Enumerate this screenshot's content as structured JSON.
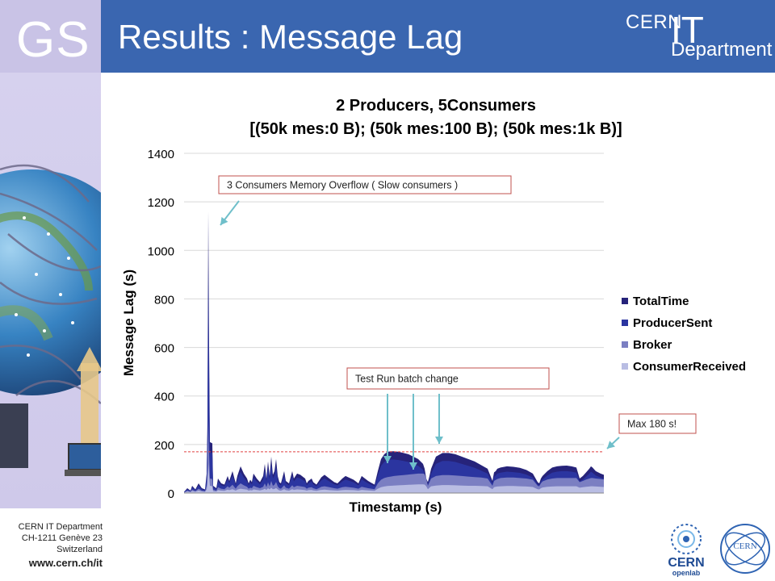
{
  "header": {
    "logo_text": "GS",
    "title": "Results : Message Lag",
    "brand_cern": "CERN",
    "brand_it": "IT",
    "brand_department": "Department"
  },
  "footer": {
    "line1": "CERN IT Department",
    "line2": "CH-1211 Genève 23",
    "line3": "Switzerland",
    "url": "www.cern.ch/it"
  },
  "logos": {
    "openlab_line1": "CERN",
    "openlab_line2": "openlab",
    "cern_seal": "CERN"
  },
  "colors": {
    "header_bg": "#3a66b0",
    "sidebar_bg": "#cfc9ea",
    "TotalTime": "#26237a",
    "ProducerSent": "#2b35a0",
    "Broker": "#7b7fc2",
    "ConsumerReceived": "#b9bde3",
    "threshold_line": "#e04040",
    "annotation_arrow": "#6fbfca"
  },
  "chart_data": {
    "type": "area",
    "title": "2 Producers, 5Consumers",
    "subtitle": "[(50k mes:0 B); (50k mes:100 B); (50k mes:1k B)]",
    "xlabel": "Timestamp (s)",
    "ylabel": "Message Lag (s)",
    "ylim": [
      0,
      1400
    ],
    "yticks": [
      0,
      200,
      400,
      600,
      800,
      1000,
      1200,
      1400
    ],
    "grid": true,
    "legend_position": "right",
    "x": [
      0,
      4,
      8,
      10,
      14,
      18,
      22,
      26,
      28,
      29,
      30,
      31,
      32,
      35,
      36,
      40,
      42,
      46,
      50,
      54,
      56,
      60,
      64,
      66,
      70,
      74,
      78,
      80,
      82,
      84,
      86,
      90,
      94,
      98,
      100,
      102,
      104,
      106,
      108,
      110,
      112,
      114,
      116,
      118,
      120,
      124,
      126,
      130,
      134,
      136,
      140,
      144,
      148,
      150,
      152,
      154,
      158,
      160,
      164,
      168,
      170,
      174,
      180,
      186,
      190,
      196,
      200,
      210,
      216,
      220,
      228,
      232,
      236,
      240,
      244,
      248,
      252,
      256,
      260,
      266,
      272,
      278,
      284,
      290,
      296,
      298,
      300,
      302,
      304,
      306,
      312,
      320,
      328,
      336,
      344,
      352,
      360,
      368,
      376,
      382,
      384,
      386,
      388,
      392,
      400,
      408,
      416,
      424,
      432,
      438,
      440,
      442,
      444,
      450,
      456,
      462,
      468,
      474,
      480,
      486,
      490,
      494,
      498,
      502,
      504,
      506,
      510,
      516,
      520
    ],
    "series": [
      {
        "name": "TotalTime",
        "values": [
          5,
          20,
          10,
          30,
          15,
          40,
          20,
          15,
          80,
          300,
          1160,
          600,
          210,
          205,
          30,
          20,
          60,
          40,
          35,
          70,
          50,
          90,
          40,
          70,
          110,
          80,
          60,
          40,
          55,
          45,
          80,
          60,
          45,
          70,
          120,
          60,
          130,
          70,
          150,
          75,
          90,
          140,
          70,
          45,
          40,
          90,
          50,
          40,
          90,
          60,
          80,
          75,
          65,
          60,
          40,
          50,
          60,
          45,
          35,
          55,
          65,
          75,
          60,
          45,
          40,
          60,
          70,
          55,
          40,
          70,
          50,
          42,
          35,
          90,
          140,
          160,
          170,
          172,
          172,
          170,
          165,
          160,
          150,
          140,
          120,
          100,
          60,
          45,
          70,
          100,
          150,
          165,
          165,
          160,
          150,
          140,
          130,
          115,
          100,
          50,
          85,
          90,
          100,
          105,
          110,
          108,
          104,
          95,
          80,
          45,
          40,
          60,
          70,
          90,
          105,
          110,
          112,
          113,
          110,
          105,
          60,
          70,
          85,
          100,
          110,
          105,
          90,
          80,
          75
        ]
      },
      {
        "name": "ProducerSent",
        "values": [
          4,
          16,
          8,
          24,
          12,
          32,
          16,
          12,
          64,
          240,
          930,
          480,
          168,
          164,
          24,
          16,
          48,
          32,
          28,
          56,
          40,
          72,
          32,
          56,
          88,
          64,
          48,
          32,
          44,
          36,
          64,
          48,
          36,
          56,
          96,
          48,
          104,
          56,
          120,
          60,
          72,
          112,
          56,
          36,
          32,
          72,
          40,
          32,
          72,
          48,
          64,
          60,
          52,
          48,
          32,
          40,
          48,
          36,
          28,
          44,
          52,
          60,
          48,
          36,
          32,
          48,
          56,
          44,
          32,
          56,
          40,
          34,
          28,
          72,
          112,
          128,
          136,
          138,
          138,
          136,
          132,
          128,
          120,
          112,
          96,
          80,
          48,
          36,
          56,
          80,
          120,
          132,
          132,
          128,
          120,
          112,
          104,
          92,
          80,
          40,
          68,
          72,
          80,
          84,
          88,
          86,
          83,
          76,
          64,
          36,
          32,
          48,
          56,
          72,
          84,
          88,
          90,
          90,
          88,
          84,
          48,
          56,
          68,
          80,
          88,
          84,
          72,
          64,
          60
        ]
      },
      {
        "name": "Broker",
        "values": [
          3,
          10,
          6,
          14,
          8,
          18,
          10,
          8,
          30,
          90,
          300,
          160,
          60,
          58,
          14,
          10,
          24,
          18,
          16,
          28,
          22,
          34,
          18,
          28,
          40,
          32,
          26,
          18,
          22,
          20,
          30,
          24,
          20,
          26,
          40,
          24,
          44,
          28,
          50,
          30,
          34,
          46,
          28,
          20,
          18,
          32,
          22,
          18,
          32,
          24,
          30,
          28,
          26,
          24,
          18,
          22,
          24,
          20,
          16,
          22,
          26,
          28,
          24,
          20,
          18,
          24,
          26,
          22,
          18,
          26,
          20,
          18,
          16,
          40,
          55,
          62,
          66,
          68,
          70,
          72,
          74,
          76,
          78,
          80,
          80,
          78,
          60,
          30,
          45,
          60,
          70,
          74,
          74,
          72,
          70,
          68,
          66,
          64,
          60,
          30,
          50,
          54,
          58,
          62,
          64,
          64,
          62,
          60,
          55,
          30,
          28,
          40,
          48,
          56,
          60,
          62,
          62,
          62,
          62,
          62,
          45,
          50,
          56,
          60,
          62,
          62,
          60,
          58,
          56
        ]
      },
      {
        "name": "ConsumerReceived",
        "values": [
          2,
          6,
          4,
          8,
          5,
          10,
          6,
          5,
          15,
          40,
          120,
          70,
          30,
          28,
          8,
          6,
          12,
          10,
          9,
          14,
          12,
          16,
          10,
          14,
          18,
          16,
          14,
          10,
          12,
          11,
          15,
          13,
          11,
          14,
          18,
          13,
          20,
          15,
          22,
          16,
          17,
          21,
          15,
          11,
          10,
          16,
          12,
          10,
          16,
          13,
          15,
          14,
          13,
          12,
          10,
          12,
          13,
          11,
          9,
          12,
          13,
          14,
          12,
          11,
          10,
          12,
          13,
          12,
          10,
          13,
          11,
          10,
          9,
          18,
          24,
          27,
          29,
          30,
          31,
          32,
          33,
          34,
          35,
          36,
          36,
          35,
          28,
          16,
          22,
          28,
          31,
          33,
          33,
          32,
          31,
          30,
          30,
          29,
          28,
          16,
          24,
          26,
          27,
          28,
          29,
          29,
          28,
          27,
          25,
          16,
          15,
          20,
          23,
          26,
          27,
          28,
          28,
          28,
          28,
          28,
          22,
          24,
          26,
          27,
          28,
          28,
          27,
          26,
          25
        ]
      }
    ],
    "threshold": {
      "value": 170
    },
    "annotations": [
      {
        "text": "3 Consumers Memory Overflow ( Slow consumers )"
      },
      {
        "text": "Test Run batch change"
      },
      {
        "text": "Max 180 s!"
      }
    ]
  }
}
